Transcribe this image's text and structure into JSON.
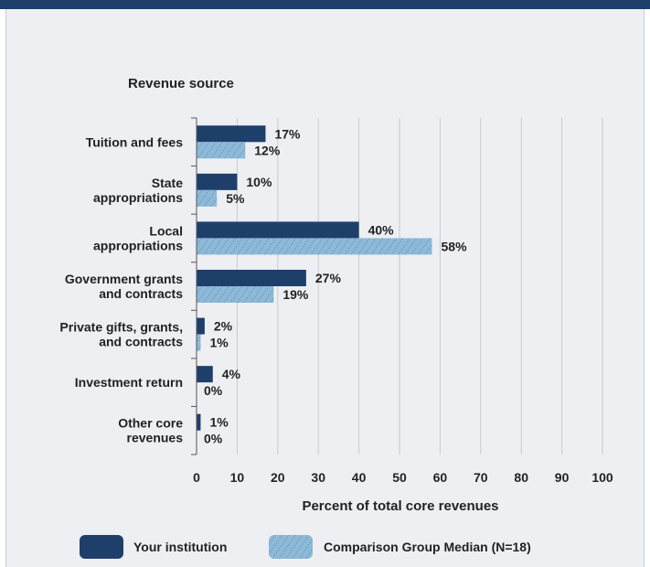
{
  "colors": {
    "institution": "#1f3f6b",
    "comparison": "#8fb8dc",
    "comparison_hatch": "#4f9a78",
    "grid": "#c7cad0",
    "background": "#eeeff2"
  },
  "chart_data": {
    "type": "bar",
    "orientation": "horizontal",
    "category_axis_title": "Revenue source",
    "xlabel": "Percent of total core revenues",
    "xlim": [
      0,
      100
    ],
    "xticks": [
      0,
      10,
      20,
      30,
      40,
      50,
      60,
      70,
      80,
      90,
      100
    ],
    "grid": true,
    "legend_position": "bottom",
    "categories": [
      [
        "Tuition and fees"
      ],
      [
        "State",
        "appropriations"
      ],
      [
        "Local",
        "appropriations"
      ],
      [
        "Government grants",
        "and contracts"
      ],
      [
        "Private gifts, grants,",
        "and contracts"
      ],
      [
        "Investment return"
      ],
      [
        "Other core",
        "revenues"
      ]
    ],
    "series": [
      {
        "name": "Your institution",
        "values": [
          17,
          10,
          40,
          27,
          2,
          4,
          1
        ],
        "labels": [
          "17%",
          "10%",
          "40%",
          "27%",
          "2%",
          "4%",
          "1%"
        ]
      },
      {
        "name": "Comparison Group Median (N=18)",
        "values": [
          12,
          5,
          58,
          19,
          1,
          0,
          0
        ],
        "labels": [
          "12%",
          "5%",
          "58%",
          "19%",
          "1%",
          "0%",
          "0%"
        ]
      }
    ]
  }
}
